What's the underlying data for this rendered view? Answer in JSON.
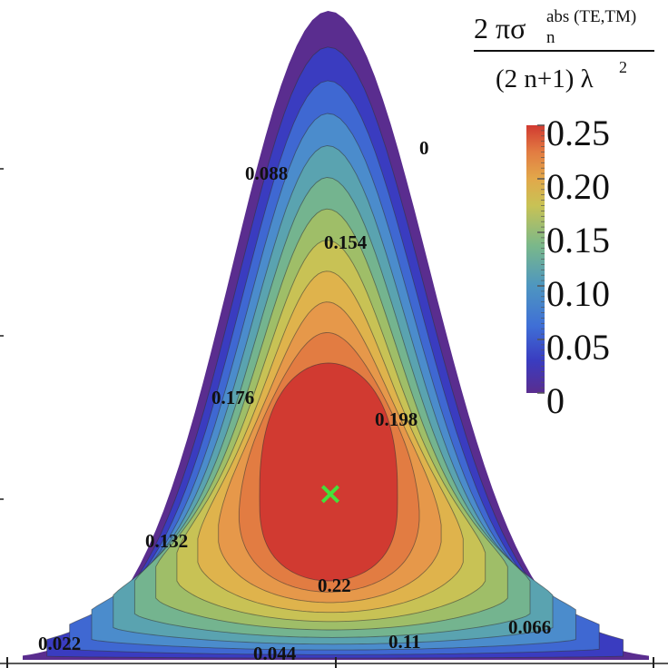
{
  "chart_data": {
    "type": "contour",
    "title": "",
    "colorbar_title": {
      "num_main": "2 πσ",
      "num_sup": "abs (TE,TM)",
      "num_sub": "n",
      "den": "(2 n+1) λ",
      "den_sup": "2"
    },
    "levels": [
      0,
      0.022,
      0.044,
      0.066,
      0.088,
      0.11,
      0.132,
      0.154,
      0.176,
      0.198,
      0.22
    ],
    "contour_labels": [
      "0",
      "0.022",
      "0.044",
      "0.066",
      "0.088",
      "0.11",
      "0.132",
      "0.154",
      "0.176",
      "0.198",
      "0.22"
    ],
    "colorbar": {
      "range": [
        0,
        0.25
      ],
      "ticks": [
        "0.25",
        "0.20",
        "0.15",
        "0.10",
        "0.05",
        "0"
      ]
    },
    "band_colors": [
      "#5a2d8f",
      "#3a3cc0",
      "#3f68d2",
      "#4b8ccc",
      "#5aa3b0",
      "#74b48f",
      "#9fbe68",
      "#c8c255",
      "#dfb34c",
      "#e6984a",
      "#e27c42",
      "#d13a31"
    ],
    "maximum_marker": {
      "symbol": "×",
      "color": "#44e03a",
      "value_range": "> 0.22"
    },
    "xlabel": "",
    "ylabel": ""
  }
}
